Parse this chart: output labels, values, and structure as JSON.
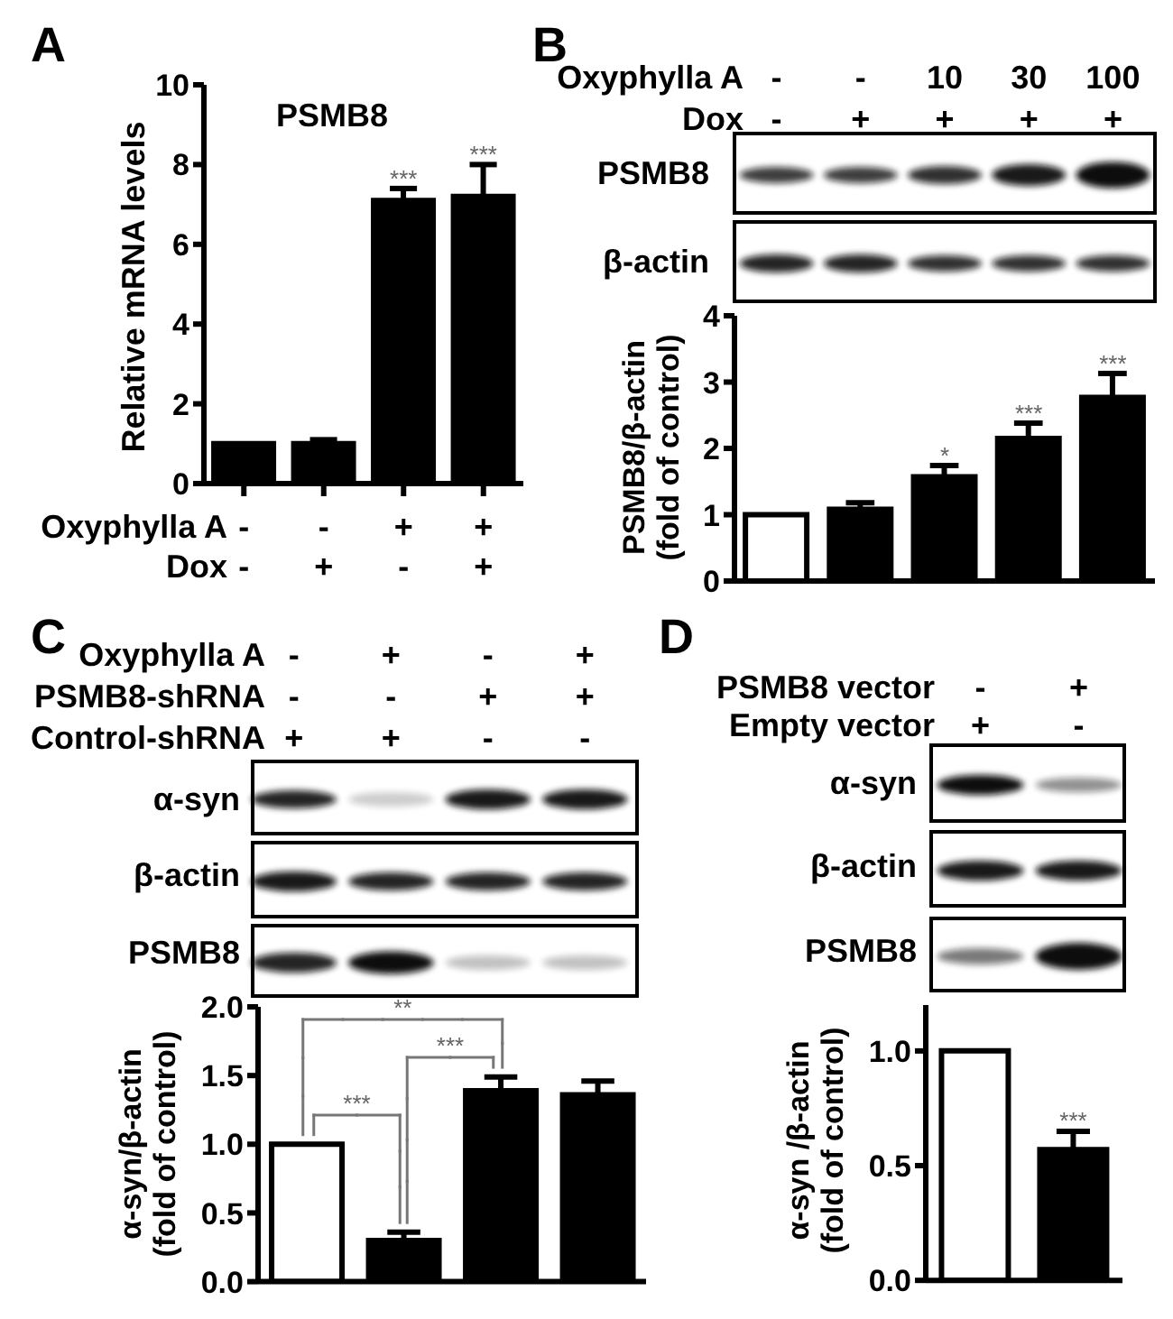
{
  "chart_data": [
    {
      "type": "bar",
      "title": "A",
      "subtitle": "PSMB8",
      "ylabel": "Relative mRNA levels",
      "categories": [
        "-\n-",
        "-\n+",
        "+\n-",
        "+\n+"
      ],
      "values": [
        1,
        1,
        7.1,
        7.2
      ],
      "errors": [
        null,
        0.1,
        0.3,
        0.8
      ],
      "colors": [
        "#000000",
        "#000000",
        "#000000",
        "#000000"
      ],
      "ylim": [
        0,
        10
      ],
      "yticks": [
        0,
        2,
        4,
        6,
        8,
        10
      ],
      "annotations": [
        "Oxyphylla A",
        "Dox",
        {
          "text": "***",
          "x": "+\n-",
          "y": 7.4
        },
        {
          "text": "***",
          "x": "+\n+",
          "y": 8
        }
      ]
    },
    {
      "type": "bar",
      "title": "B",
      "ylabel": "PSMB8/β-actin\n(fold of control)",
      "categories": [
        "-\n-",
        "-\n+",
        "10\n+",
        "30\n+",
        "100\n+"
      ],
      "values": [
        1,
        1.08,
        1.57,
        2.15,
        2.77
      ],
      "errors": [
        null,
        0.1,
        0.17,
        0.23,
        0.36
      ],
      "colors": [
        "#ffffff",
        "#000000",
        "#000000",
        "#000000",
        "#000000"
      ],
      "ylim": [
        0,
        4
      ],
      "yticks": [
        0,
        1,
        2,
        3,
        4
      ],
      "tick_labels": "y",
      "annotations": [
        "Oxyphylla A",
        "Dox",
        "PSMB8",
        "β-actin",
        {
          "text": "*",
          "x": "10\n+",
          "y": 1.74
        },
        {
          "text": "***",
          "x": "30\n+",
          "y": 2.38
        },
        {
          "text": "***",
          "x": "100\n+",
          "y": 3.13
        }
      ]
    },
    {
      "type": "bar",
      "title": "C",
      "ylabel": "α-syn/β-actin\n(fold of control)",
      "categories": [
        "-\n-\n+",
        "+\n-\n+",
        "-\n+\n-",
        "+\n+\n-"
      ],
      "values": [
        1,
        0.3,
        1.39,
        1.36
      ],
      "errors": [
        null,
        0.06,
        0.1,
        0.1
      ],
      "colors": [
        "#ffffff",
        "#000000",
        "#000000",
        "#000000"
      ],
      "ylim": [
        0,
        2
      ],
      "yticks": [
        {
          "value": 0,
          "label": "0.0"
        },
        0.5,
        {
          "value": 1,
          "label": "1.0"
        },
        1.5,
        {
          "value": 2,
          "label": "2.0"
        }
      ],
      "tick_labels": "y",
      "annotations": [
        "Oxyphylla A",
        "PSMB8-shRNA",
        "Control-shRNA",
        "α-syn",
        "β-actin",
        "PSMB8",
        "**",
        "***",
        "***"
      ]
    },
    {
      "type": "bar",
      "title": "D",
      "ylabel": "α-syn /β-actin\n(fold of control)",
      "categories": [
        "-\n+",
        "+\n-"
      ],
      "values": [
        1,
        0.57
      ],
      "errors": [
        null,
        0.08
      ],
      "colors": [
        "#ffffff",
        "#000000"
      ],
      "ylim": [
        0,
        1.2
      ],
      "yticks": [
        {
          "value": 0,
          "label": "0.0"
        },
        0.5,
        {
          "value": 1,
          "label": "1.0"
        }
      ],
      "tick_labels": "y",
      "annotations": [
        "PSMB8 vector",
        "Empty vector",
        "α-syn",
        "β-actin",
        "PSMB8",
        {
          "text": "***",
          "x": "+\n-",
          "y": 0.65
        }
      ]
    }
  ]
}
